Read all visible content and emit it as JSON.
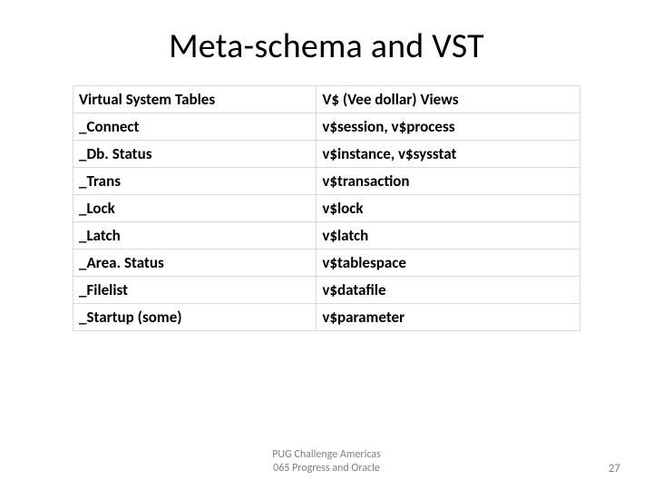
{
  "slide": {
    "title": "Meta-schema and VST",
    "table": {
      "headers": [
        "Virtual System Tables",
        "V$ (Vee dollar) Views"
      ],
      "rows": [
        [
          "_Connect",
          "v$session, v$process"
        ],
        [
          "_Db. Status",
          "v$instance, v$sysstat"
        ],
        [
          "_Trans",
          "v$transaction"
        ],
        [
          "_Lock",
          "v$lock"
        ],
        [
          "_Latch",
          "v$latch"
        ],
        [
          "_Area. Status",
          "v$tablespace"
        ],
        [
          "_Filelist",
          "v$datafile"
        ],
        [
          "_Startup (some)",
          "v$parameter"
        ]
      ],
      "border_color": "#d9d9d9",
      "header_fontsize": 17,
      "cell_fontsize": 17
    },
    "footer": {
      "line1": "PUG Challenge Americas",
      "line2": "065 Progress and Oracle"
    },
    "page_number": "27"
  },
  "colors": {
    "background": "#ffffff",
    "text": "#000000",
    "footer_text": "#7f7f7f",
    "table_border": "#d9d9d9"
  },
  "typography": {
    "title_fontsize": 38,
    "body_fontsize": 17,
    "footer_fontsize": 12,
    "font_family": "Calibri"
  }
}
